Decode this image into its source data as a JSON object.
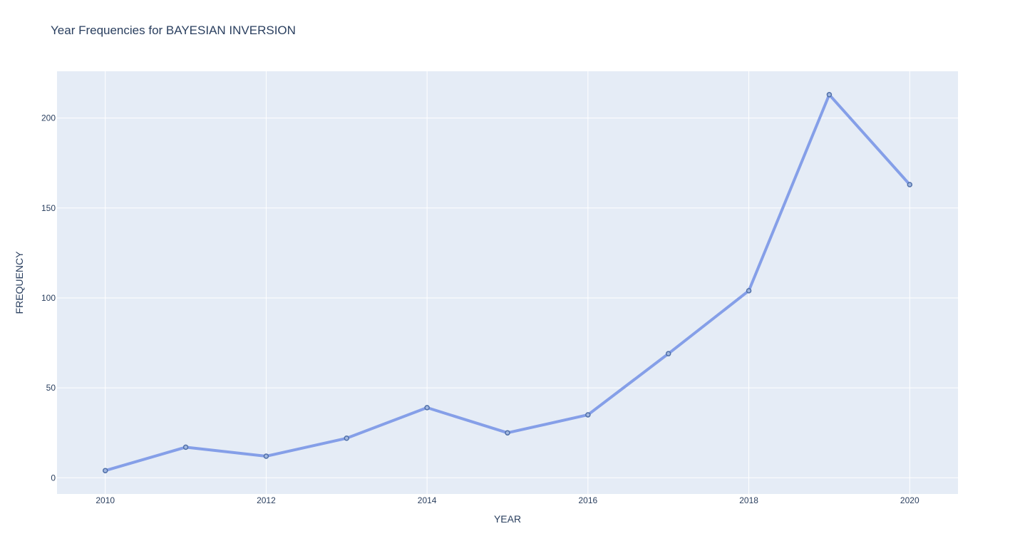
{
  "chart_data": {
    "type": "line",
    "title": "Year Frequencies for BAYESIAN INVERSION",
    "xlabel": "YEAR",
    "ylabel": "FREQUENCY",
    "x": [
      2010,
      2011,
      2012,
      2013,
      2014,
      2015,
      2016,
      2017,
      2018,
      2019,
      2020
    ],
    "series": [
      {
        "values": [
          4,
          17,
          12,
          22,
          39,
          25,
          35,
          69,
          104,
          213,
          163
        ]
      }
    ],
    "x_ticks": [
      "2010",
      "2012",
      "2014",
      "2016",
      "2018",
      "2020"
    ],
    "y_ticks": [
      "0",
      "50",
      "100",
      "150",
      "200"
    ],
    "xlim": [
      2009.4,
      2020.6
    ],
    "ylim": [
      -9,
      226
    ],
    "grid": true,
    "legend": "none",
    "colors": {
      "plot_background": "#e5ecf6",
      "grid": "#ffffff",
      "line": "#859fe8",
      "marker_fill": "#a3b8e0",
      "marker_stroke": "#4f6fa8",
      "text": "#2a3f5f"
    }
  }
}
